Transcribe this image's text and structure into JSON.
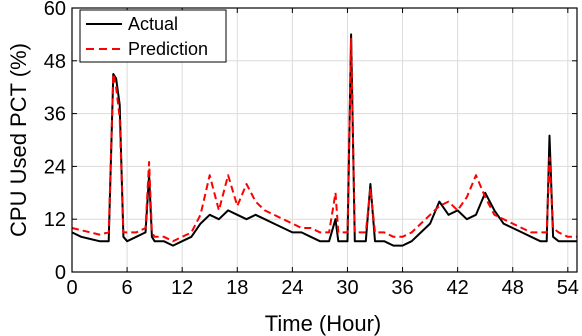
{
  "chart_data": {
    "type": "line",
    "title": "",
    "xlabel": "Time (Hour)",
    "ylabel": "CPU Used PCT (%)",
    "xlim": [
      0,
      55
    ],
    "ylim": [
      0,
      60
    ],
    "xticks": [
      0,
      6,
      12,
      18,
      24,
      30,
      36,
      42,
      48,
      54
    ],
    "yticks": [
      0,
      12,
      24,
      36,
      48,
      60
    ],
    "grid": true,
    "legend_position": "top-left",
    "series": [
      {
        "name": "Actual",
        "color": "#000000",
        "style": "solid",
        "x": [
          0,
          1,
          2,
          3,
          4,
          4.5,
          4.8,
          5.2,
          5.6,
          6,
          7,
          8,
          8.4,
          8.7,
          9,
          10,
          11,
          12,
          13,
          14,
          15,
          16,
          17,
          18,
          19,
          20,
          21,
          22,
          23,
          24,
          25,
          26,
          27,
          28,
          28.7,
          29,
          30,
          30.4,
          30.8,
          31.2,
          32,
          32.5,
          33,
          34,
          35,
          36,
          37,
          38,
          39,
          40,
          41,
          42,
          43,
          44,
          45,
          46,
          47,
          48,
          49,
          50,
          51,
          51.7,
          52,
          52.4,
          53,
          54,
          55
        ],
        "y": [
          9,
          8,
          7.5,
          7,
          7,
          45,
          44,
          38,
          8,
          7,
          8,
          9,
          22,
          8,
          7,
          7,
          6,
          7,
          8,
          11,
          13,
          12,
          14,
          13,
          12,
          13,
          12,
          11,
          10,
          9,
          9,
          8,
          7,
          7,
          12,
          7,
          7,
          54,
          7,
          7,
          7,
          20,
          7,
          7,
          6,
          6,
          7,
          9,
          11,
          16,
          13,
          14,
          12,
          13,
          18,
          14,
          11,
          10,
          9,
          8,
          7,
          7,
          31,
          8,
          7,
          7,
          7
        ]
      },
      {
        "name": "Prediction",
        "color": "#ff0000",
        "style": "dashed",
        "x": [
          0,
          1,
          2,
          3,
          4,
          4.5,
          4.8,
          5.2,
          5.6,
          6,
          7,
          8,
          8.4,
          8.7,
          9,
          10,
          11,
          12,
          13,
          14,
          15,
          16,
          17,
          18,
          19,
          20,
          21,
          22,
          23,
          24,
          25,
          26,
          27,
          28,
          28.7,
          29,
          30,
          30.4,
          30.8,
          31.2,
          32,
          32.5,
          33,
          34,
          35,
          36,
          37,
          38,
          39,
          40,
          41,
          42,
          43,
          44,
          45,
          46,
          47,
          48,
          49,
          50,
          51,
          51.7,
          52,
          52.4,
          53,
          54,
          55
        ],
        "y": [
          10,
          9.5,
          9,
          8.5,
          9,
          45,
          42,
          35,
          9,
          9,
          9,
          10,
          25,
          9,
          8,
          8,
          7,
          8,
          9,
          13,
          22,
          14,
          22,
          15,
          20,
          16,
          14,
          13,
          12,
          11,
          10,
          10,
          9,
          9,
          18,
          9,
          9,
          53,
          9,
          9,
          9,
          19,
          9,
          9,
          8,
          8,
          9,
          11,
          13,
          15,
          16,
          14,
          17,
          22,
          17,
          13,
          12,
          11,
          10,
          9,
          9,
          9,
          26,
          10,
          9,
          8,
          8
        ]
      }
    ]
  }
}
